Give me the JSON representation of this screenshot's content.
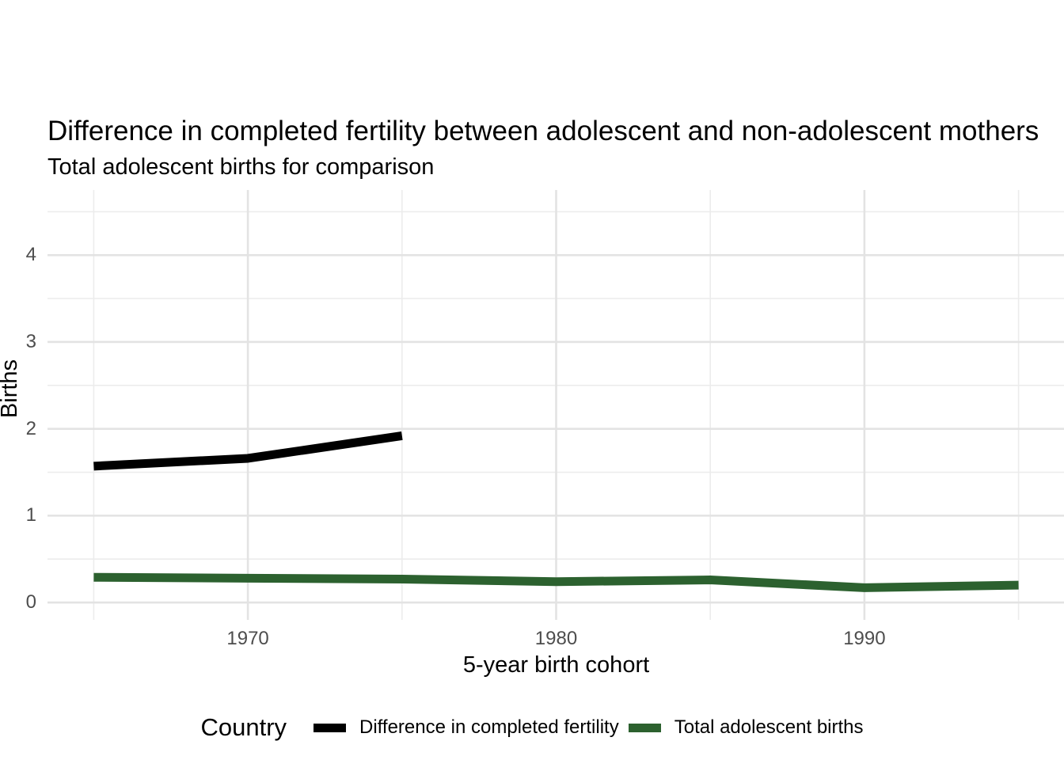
{
  "chart_data": {
    "type": "line",
    "title": "Difference in completed fertility between adolescent and non-adolescent mothers",
    "subtitle": "Total adolescent births for comparison",
    "xlabel": "5-year birth cohort",
    "ylabel": "Births",
    "x_major_ticks": [
      1970,
      1980,
      1990
    ],
    "x_minor_ticks": [
      1965,
      1975,
      1985,
      1995
    ],
    "y_major_ticks": [
      0,
      1,
      2,
      3,
      4
    ],
    "y_minor_ticks": [
      0.5,
      1.5,
      2.5,
      3.5,
      4.5
    ],
    "xlim": [
      1963.5,
      1996.5
    ],
    "ylim": [
      -0.2,
      4.75
    ],
    "grid": "major-and-minor-gridlines-no-axis-lines-no-tick-marks",
    "legend": {
      "title": "Country",
      "position": "bottom"
    },
    "series": [
      {
        "name": "Difference in completed fertility",
        "color": "#000000",
        "x": [
          1965,
          1970,
          1975
        ],
        "y": [
          1.57,
          1.66,
          1.92
        ]
      },
      {
        "name": "Total adolescent births",
        "color": "#2c612f",
        "x": [
          1965,
          1970,
          1975,
          1980,
          1985,
          1990,
          1995
        ],
        "y": [
          0.29,
          0.28,
          0.27,
          0.24,
          0.26,
          0.17,
          0.2
        ]
      }
    ]
  },
  "colors": {
    "background": "#ffffff",
    "grid_major": "#e3e3e3",
    "grid_minor": "#ececec",
    "tick_label": "#4d4d4d",
    "text": "#000000"
  }
}
